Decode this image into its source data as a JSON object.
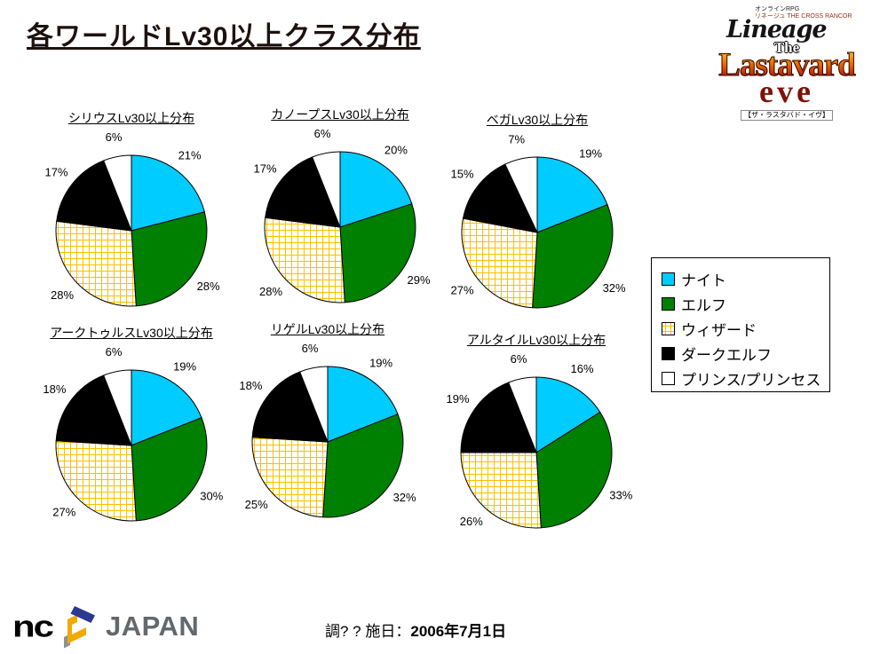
{
  "page": {
    "title": "各ワールドLv30以上クラス分布",
    "footer_date_label": "調? ? 施日：",
    "footer_date_value": "2006年7月1日"
  },
  "brand": {
    "nc_text": "nc",
    "japan_text": "JAPAN"
  },
  "logo": {
    "tiny_line1": "オンラインRPG",
    "tiny_line2": "リネージュ THE CROSS RANCOR",
    "lineage": "Lineage",
    "the": "The",
    "lastavard": "Lastavard",
    "eve": "eve",
    "subtitle": "【ザ・ラスタバド・イヴ】"
  },
  "legend": {
    "position": "right",
    "items": [
      {
        "label": "ナイト",
        "color": "#00CCFF",
        "swatch": "solid"
      },
      {
        "label": "エルフ",
        "color": "#008000",
        "swatch": "solid"
      },
      {
        "label": "ウィザード",
        "color": "#FFC000",
        "swatch": "grid"
      },
      {
        "label": "ダークエルフ",
        "color": "#000000",
        "swatch": "solid"
      },
      {
        "label": "プリンス/プリンセス",
        "color": "#FFFFFF",
        "swatch": "solid"
      }
    ]
  },
  "chart_data": [
    {
      "type": "pie",
      "title": "シリウスLv30以上分布",
      "world": "シリウス",
      "categories": [
        "ナイト",
        "エルフ",
        "ウィザード",
        "ダークエルフ",
        "プリンス/プリンセス"
      ],
      "values": [
        21,
        28,
        28,
        17,
        6
      ]
    },
    {
      "type": "pie",
      "title": "カノープスLv30以上分布",
      "world": "カノープス",
      "categories": [
        "ナイト",
        "エルフ",
        "ウィザード",
        "ダークエルフ",
        "プリンス/プリンセス"
      ],
      "values": [
        20,
        29,
        28,
        17,
        6
      ]
    },
    {
      "type": "pie",
      "title": "ベガLv30以上分布",
      "world": "ベガ",
      "categories": [
        "ナイト",
        "エルフ",
        "ウィザード",
        "ダークエルフ",
        "プリンス/プリンセス"
      ],
      "values": [
        19,
        32,
        27,
        15,
        7
      ]
    },
    {
      "type": "pie",
      "title": "アークトゥルスLv30以上分布",
      "world": "アークトゥルス",
      "categories": [
        "ナイト",
        "エルフ",
        "ウィザード",
        "ダークエルフ",
        "プリンス/プリンセス"
      ],
      "values": [
        19,
        30,
        27,
        18,
        6
      ]
    },
    {
      "type": "pie",
      "title": "リゲルLv30以上分布",
      "world": "リゲル",
      "categories": [
        "ナイト",
        "エルフ",
        "ウィザード",
        "ダークエルフ",
        "プリンス/プリンセス"
      ],
      "values": [
        19,
        32,
        25,
        18,
        6
      ]
    },
    {
      "type": "pie",
      "title": "アルタイルLv30以上分布",
      "world": "アルタイル",
      "categories": [
        "ナイト",
        "エルフ",
        "ウィザード",
        "ダークエルフ",
        "プリンス/プリンセス"
      ],
      "values": [
        16,
        33,
        26,
        19,
        6
      ]
    }
  ]
}
